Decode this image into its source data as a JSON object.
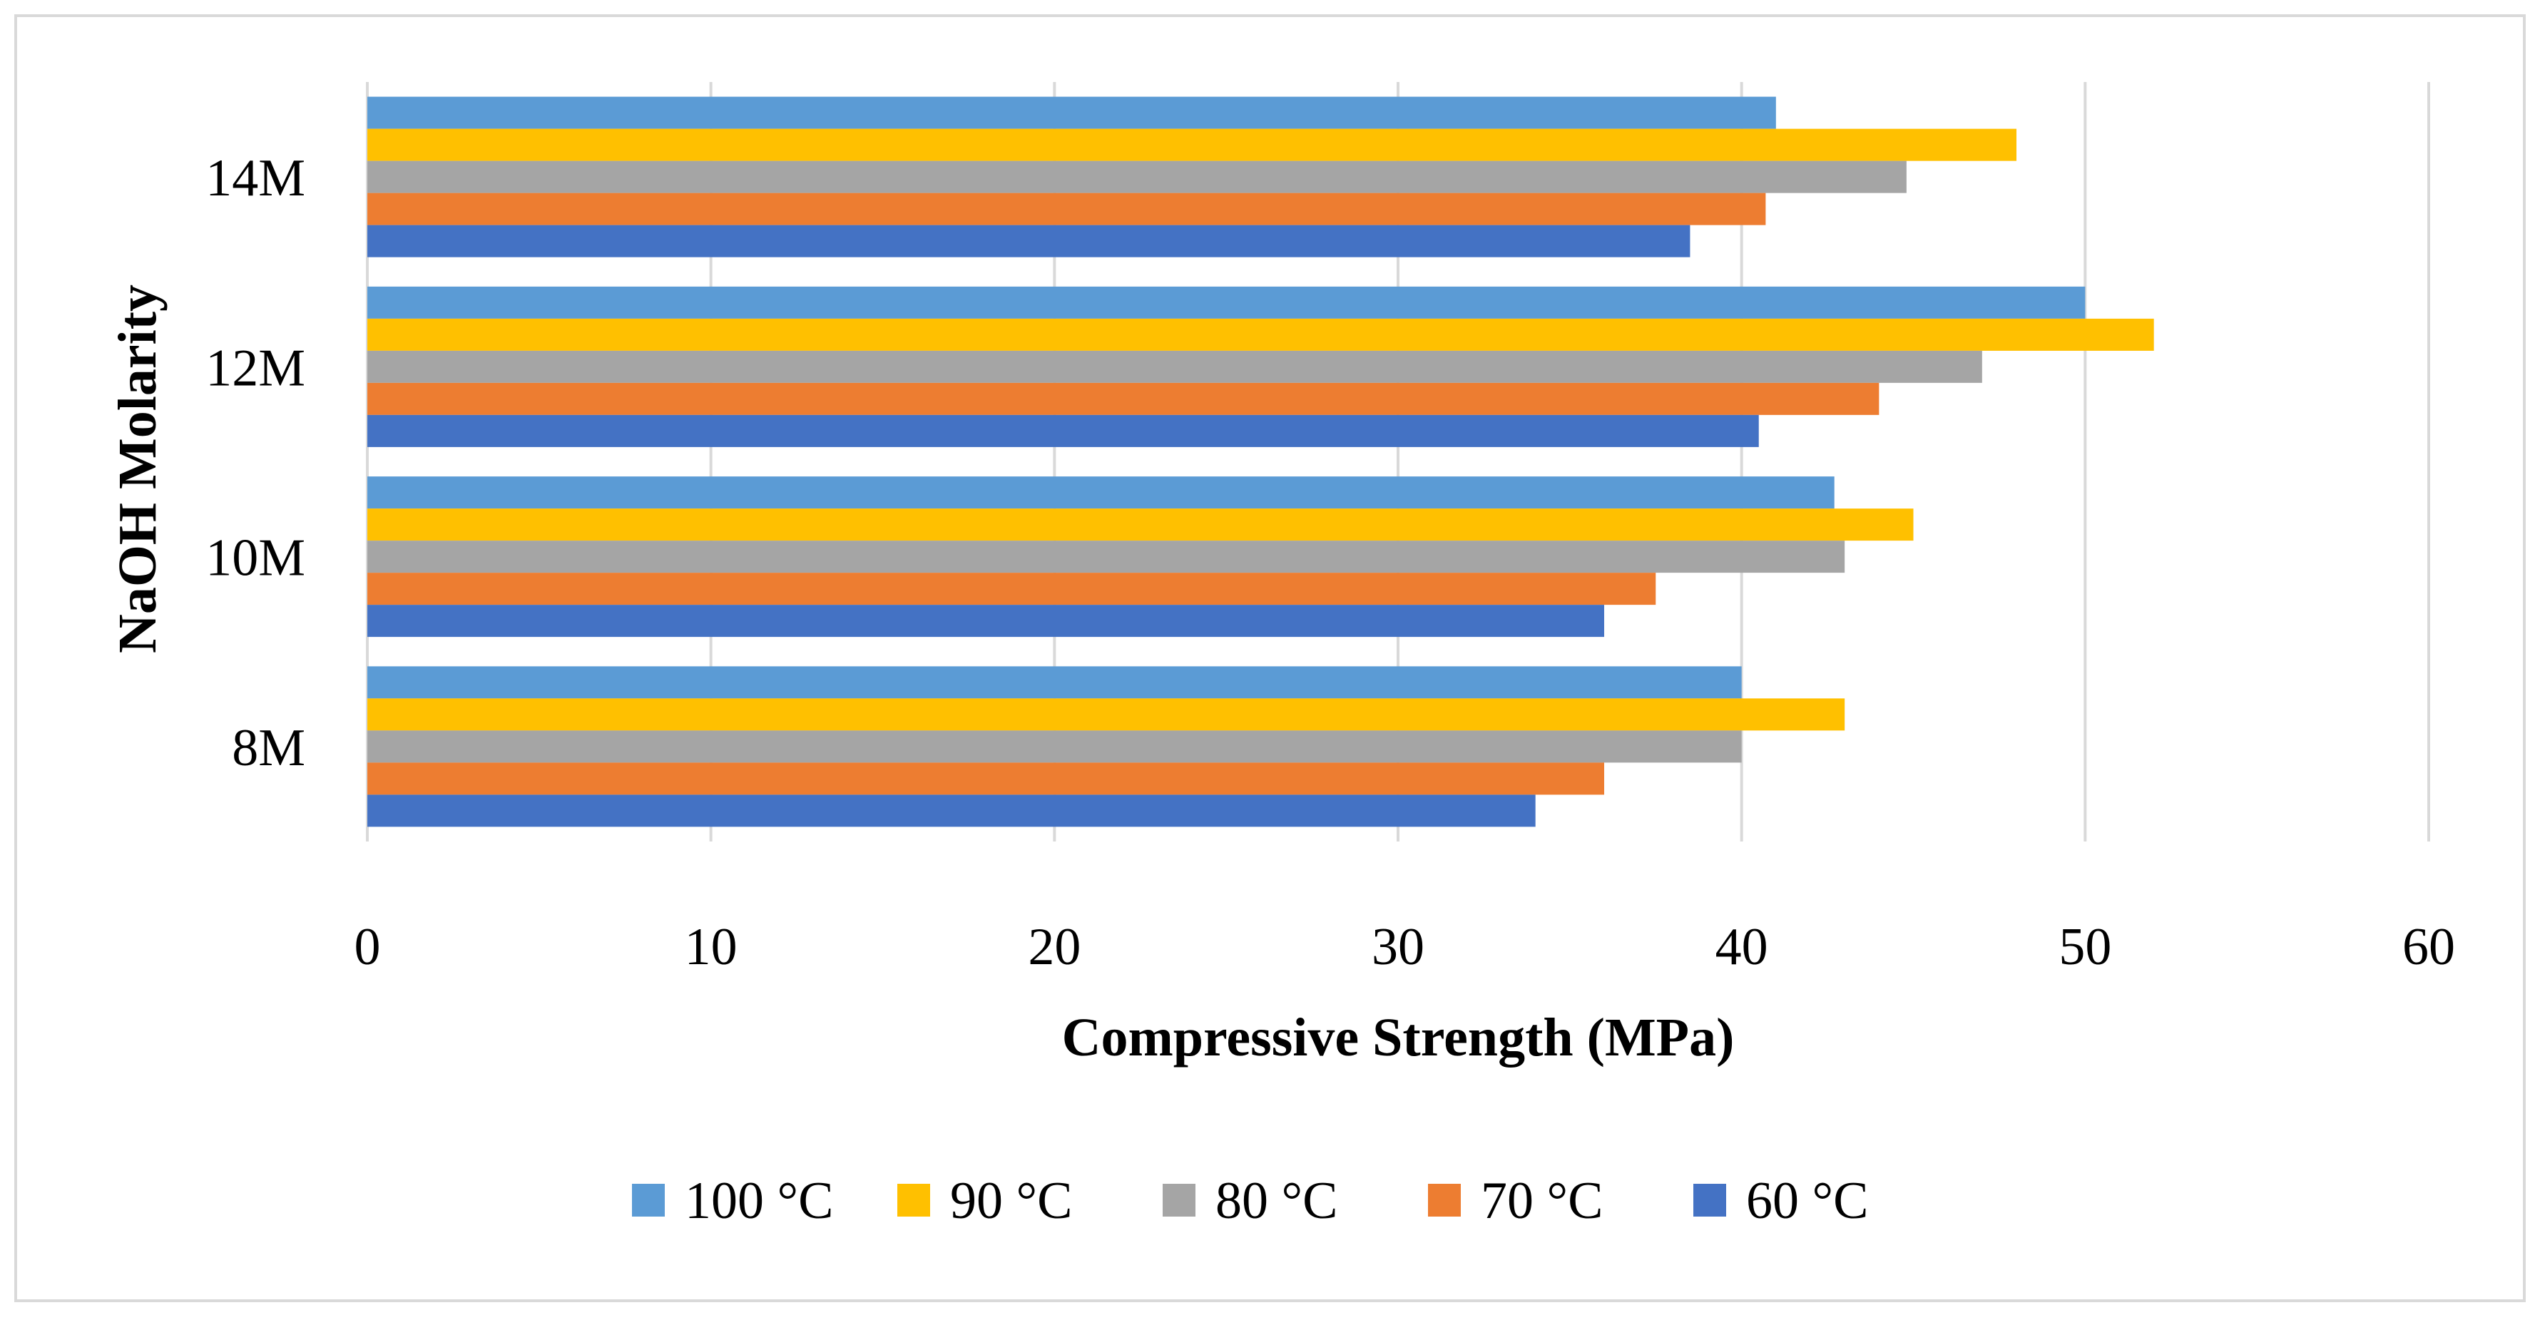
{
  "chart_data": {
    "type": "bar",
    "orientation": "horizontal",
    "title": "",
    "xlabel": "Compressive Strength (MPa)",
    "ylabel": "NaOH Molarity",
    "categories": [
      "8M",
      "10M",
      "12M",
      "14M"
    ],
    "xlim": [
      0,
      60
    ],
    "xticks": [
      "0",
      "10",
      "20",
      "30",
      "40",
      "50",
      "60"
    ],
    "grid": true,
    "legend_position": "bottom",
    "series": [
      {
        "name": "100 °C",
        "color": "#5b9bd5",
        "values": [
          40,
          42.7,
          50,
          41
        ]
      },
      {
        "name": "90 °C",
        "color": "#ffc000",
        "values": [
          43,
          45,
          52,
          48
        ]
      },
      {
        "name": "80 °C",
        "color": "#a5a5a5",
        "values": [
          40,
          43,
          47,
          44.8
        ]
      },
      {
        "name": "70 °C",
        "color": "#ed7d31",
        "values": [
          36,
          37.5,
          44,
          40.7
        ]
      },
      {
        "name": "60 °C",
        "color": "#4472c4",
        "values": [
          34,
          36,
          40.5,
          38.5
        ]
      }
    ]
  }
}
